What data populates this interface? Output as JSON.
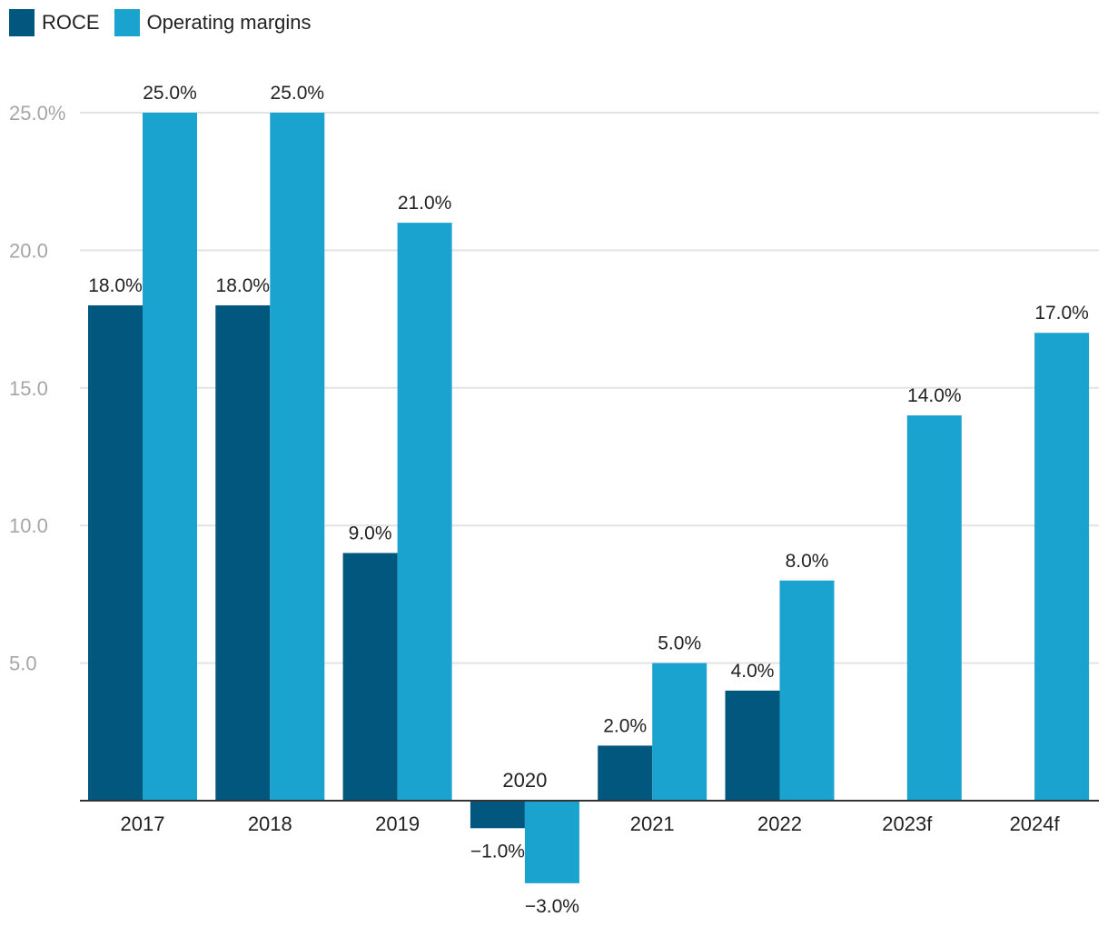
{
  "colors": {
    "roce": "#02577e",
    "operating_margins": "#1aa3ce",
    "grid": "#e3e3e3",
    "axis": "#333333"
  },
  "chart_data": {
    "type": "bar",
    "categories": [
      "2017",
      "2018",
      "2019",
      "2020",
      "2021",
      "2022",
      "2023f",
      "2024f"
    ],
    "series": [
      {
        "name": "ROCE",
        "values": [
          18.0,
          18.0,
          9.0,
          -1.0,
          2.0,
          4.0,
          null,
          null
        ],
        "labels": [
          "18.0%",
          "18.0%",
          "9.0%",
          "−1.0%",
          "2.0%",
          "4.0%",
          "",
          ""
        ]
      },
      {
        "name": "Operating margins",
        "values": [
          25.0,
          25.0,
          21.0,
          -3.0,
          5.0,
          8.0,
          14.0,
          17.0
        ],
        "labels": [
          "25.0%",
          "25.0%",
          "21.0%",
          "−3.0%",
          "5.0%",
          "8.0%",
          "14.0%",
          "17.0%"
        ]
      }
    ],
    "y_ticks": [
      5,
      10,
      15,
      20,
      25
    ],
    "y_tick_labels": [
      "5.0",
      "10.0",
      "15.0",
      "20.0",
      "25.0%"
    ],
    "ylim": [
      -3.0,
      25.0
    ],
    "grid": true,
    "legend": "top-left"
  }
}
